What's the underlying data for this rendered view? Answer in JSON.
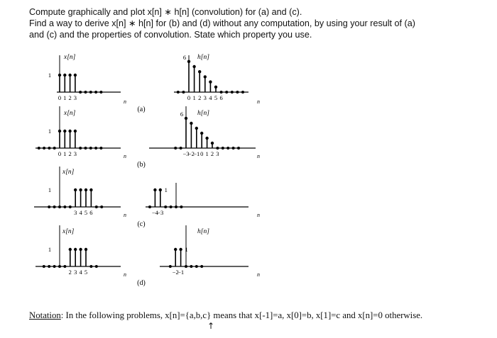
{
  "problem": {
    "line1": "Compute graphically and plot x[n] ∗ h[n] (convolution) for (a) and (c).",
    "line2": "Find a way to derive x[n] ∗ h[n] for (b) and (d) without any computation, by using your result of (a)",
    "line3": "and (c) and the properties of convolution. State which property you use."
  },
  "parts": [
    "(a)",
    "(b)",
    "(c)",
    "(d)"
  ],
  "axis_var": "n",
  "plots": [
    {
      "id": "a-x",
      "label": "x[n]",
      "stems": [
        {
          "n": 0,
          "v": 1
        },
        {
          "n": 1,
          "v": 1
        },
        {
          "n": 2,
          "v": 1
        },
        {
          "n": 3,
          "v": 1
        }
      ],
      "ticks": [
        "0",
        "1",
        "2",
        "3"
      ],
      "amp_label": "1"
    },
    {
      "id": "a-h",
      "label": "h[n]",
      "stems": [
        {
          "n": 0,
          "v": 6
        },
        {
          "n": 1,
          "v": 5
        },
        {
          "n": 2,
          "v": 4
        },
        {
          "n": 3,
          "v": 3
        },
        {
          "n": 4,
          "v": 2
        },
        {
          "n": 5,
          "v": 1
        }
      ],
      "ticks": [
        "0",
        "1",
        "2",
        "3",
        "4",
        "5",
        "6"
      ],
      "amp_label": "6"
    },
    {
      "id": "b-x",
      "label": "x[n]",
      "stems": [
        {
          "n": 0,
          "v": 1
        },
        {
          "n": 1,
          "v": 1
        },
        {
          "n": 2,
          "v": 1
        },
        {
          "n": 3,
          "v": 1
        }
      ],
      "ticks": [
        "0",
        "1",
        "2",
        "3"
      ],
      "amp_label": "1"
    },
    {
      "id": "b-h",
      "label": "h[n]",
      "stems": [
        {
          "n": -3,
          "v": 6
        },
        {
          "n": -2,
          "v": 5
        },
        {
          "n": -1,
          "v": 4
        },
        {
          "n": 0,
          "v": 3
        },
        {
          "n": 1,
          "v": 2
        },
        {
          "n": 2,
          "v": 1
        }
      ],
      "ticks": [
        "−3",
        "−2",
        "−1",
        "0",
        "1",
        "2",
        "3"
      ],
      "amp_label": "6"
    },
    {
      "id": "c-x",
      "label": "x[n]",
      "stems": [
        {
          "n": 3,
          "v": 1
        },
        {
          "n": 4,
          "v": 1
        },
        {
          "n": 5,
          "v": 1
        },
        {
          "n": 6,
          "v": 1
        }
      ],
      "ticks": [
        "3",
        "4",
        "5",
        "6"
      ],
      "amp_label": "1"
    },
    {
      "id": "c-h",
      "label": "",
      "stems": [
        {
          "n": -4,
          "v": 1
        },
        {
          "n": -3,
          "v": 1
        }
      ],
      "ticks": [
        "−4",
        "−3"
      ],
      "amp_label": "1"
    },
    {
      "id": "d-x",
      "label": "x[n]",
      "stems": [
        {
          "n": 2,
          "v": 1
        },
        {
          "n": 3,
          "v": 1
        },
        {
          "n": 4,
          "v": 1
        },
        {
          "n": 5,
          "v": 1
        }
      ],
      "ticks": [
        "2",
        "3",
        "4",
        "5"
      ],
      "amp_label": "1"
    },
    {
      "id": "d-h",
      "label": "h[n]",
      "stems": [
        {
          "n": -2,
          "v": 1
        },
        {
          "n": -1,
          "v": 1
        }
      ],
      "ticks": [
        "−2",
        "−1"
      ],
      "amp_label": "1"
    }
  ],
  "notation": {
    "label": "Notation",
    "text": ": In the following problems, x[n]={a,b,c} means that x[-1]=a, x[0]=b, x[1]=c and x[n]=0 otherwise."
  }
}
